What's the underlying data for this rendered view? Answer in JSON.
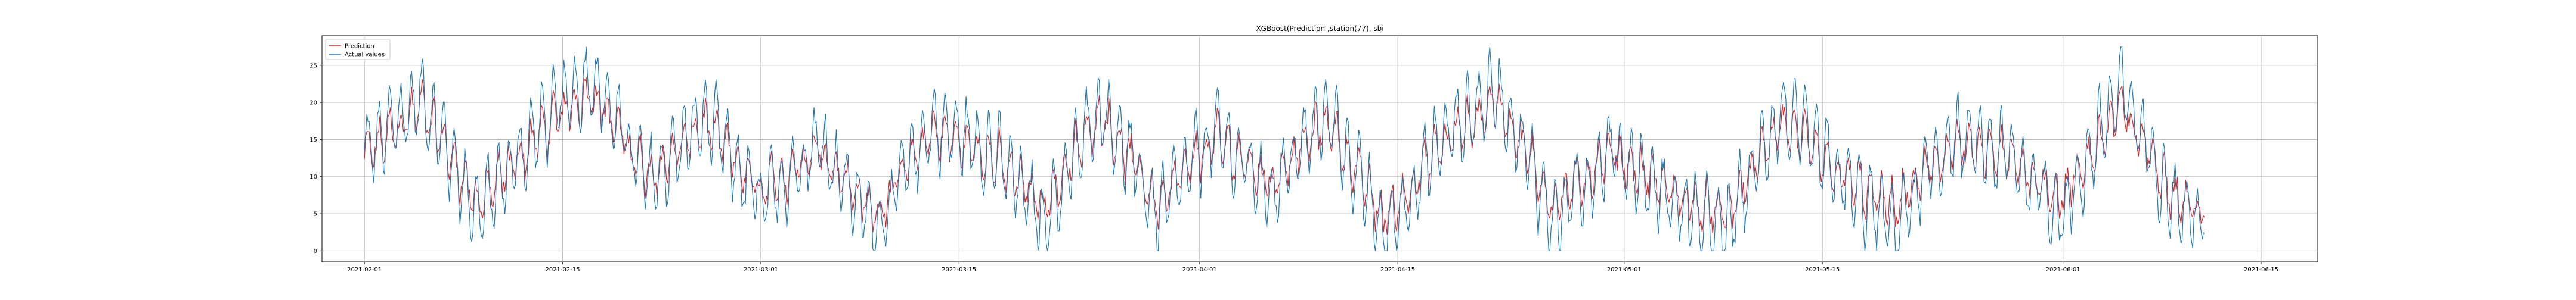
{
  "chart_data": {
    "type": "line",
    "title": "XGBoost(Prediction ,station(77), sbi",
    "xlabel": "",
    "ylabel": "",
    "xlim": [
      "2021-01-29",
      "2021-06-19"
    ],
    "ylim": [
      -1.5,
      29
    ],
    "grid": true,
    "legend": "top-left",
    "x_ticks": [
      "2021-02-01",
      "2021-02-15",
      "2021-03-01",
      "2021-03-15",
      "2021-04-01",
      "2021-04-15",
      "2021-05-01",
      "2021-05-15",
      "2021-06-01",
      "2021-06-15"
    ],
    "y_ticks": [
      0,
      5,
      10,
      15,
      20,
      25
    ],
    "sampling": "hourly, 2021-02-01 to 2021-06-11 (summarised as daily min/max envelope)",
    "x_dates": [
      "2021-02-01",
      "2021-02-05",
      "2021-02-09",
      "2021-02-13",
      "2021-02-17",
      "2021-02-21",
      "2021-02-25",
      "2021-03-01",
      "2021-03-05",
      "2021-03-09",
      "2021-03-13",
      "2021-03-17",
      "2021-03-21",
      "2021-03-25",
      "2021-03-29",
      "2021-04-02",
      "2021-04-06",
      "2021-04-10",
      "2021-04-14",
      "2021-04-18",
      "2021-04-22",
      "2021-04-26",
      "2021-04-30",
      "2021-05-04",
      "2021-05-08",
      "2021-05-12",
      "2021-05-16",
      "2021-05-20",
      "2021-05-24",
      "2021-05-28",
      "2021-06-01",
      "2021-06-05",
      "2021-06-09",
      "2021-06-11"
    ],
    "series": [
      {
        "name": "Prediction",
        "color": "#d62728",
        "values": [
          12,
          18,
          8,
          14,
          19,
          11,
          16,
          10,
          13,
          7,
          15,
          12,
          9,
          17,
          8,
          14,
          11,
          16,
          7,
          13,
          18,
          9,
          12,
          10,
          7,
          15,
          11,
          9,
          13,
          12,
          10,
          16,
          9,
          6
        ]
      },
      {
        "name": "Actual values",
        "color": "#1f77b4",
        "values": [
          13,
          21,
          5,
          16,
          24,
          9,
          18,
          6,
          15,
          3,
          17,
          14,
          4,
          20,
          5,
          16,
          8,
          19,
          2,
          15,
          22,
          4,
          14,
          7,
          2,
          19,
          10,
          3,
          15,
          13,
          5,
          22,
          6,
          4
        ]
      }
    ]
  }
}
